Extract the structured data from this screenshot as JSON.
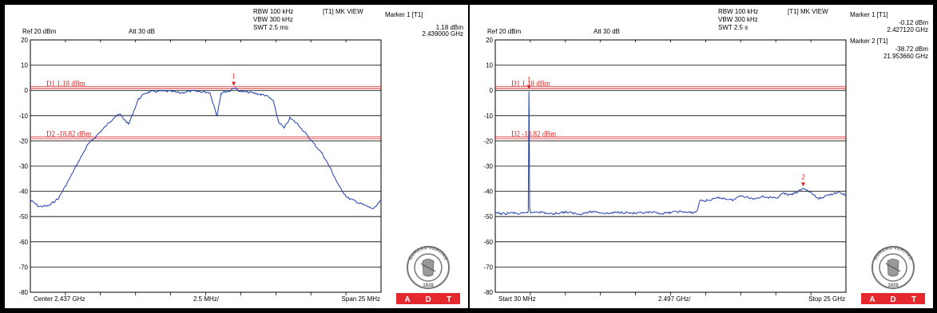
{
  "panels": [
    {
      "header": {
        "rbw": "RBW 100 kHz",
        "vbw": "VBW 300 kHz",
        "swt": "SWT 2.5 ms",
        "view": "[T1] MK VIEW",
        "ref": "Ref 20 dBm",
        "att": "Att  30 dB"
      },
      "markers": [
        {
          "label": "Marker 1 [T1]",
          "level": "1.18 dBm",
          "freq": "2.439000 GHz"
        }
      ],
      "footer": {
        "left": "Center 2.437 GHz",
        "center": "2.5 MHz/",
        "right": "Span 25 MHz"
      }
    },
    {
      "header": {
        "rbw": "RBW 100 kHz",
        "vbw": "VBW 300 kHz",
        "swt": "SWT 2.5 s",
        "view": "[T1] MK VIEW",
        "ref": "Ref 20 dBm",
        "att": "Att  30 dB"
      },
      "markers": [
        {
          "label": "Marker 1 [T1]",
          "level": "-0.12 dBm",
          "freq": "2.427120 GHz"
        },
        {
          "label": "Marker 2 [T1]",
          "level": "-38.72 dBm",
          "freq": "21.953660 GHz"
        }
      ],
      "footer": {
        "left": "Start 30 MHz",
        "center": "2.497 GHz/",
        "right": "Stop 25 GHz"
      }
    }
  ],
  "logo": {
    "text": "BUREAU VERITAS",
    "year": "1828",
    "band": [
      "A",
      "D",
      "T"
    ],
    "band_color": "#e4282d"
  },
  "chart_data": [
    {
      "type": "line",
      "xlabel": "",
      "ylabel": "",
      "xlim": [
        2424.5,
        2449.5
      ],
      "ylim": [
        -80,
        20
      ],
      "yticks": [
        "20",
        "10",
        "0",
        "-10",
        "-20",
        "-30",
        "-40",
        "-50",
        "-60",
        "-70",
        "-80"
      ],
      "grid": true,
      "series": [
        {
          "x": [
            2424.5,
            2425.1,
            2425.8,
            2426.5,
            2427.2,
            2427.9,
            2428.6,
            2429.3,
            2430.0,
            2430.5,
            2430.9,
            2431.5,
            2432.2,
            2432.7,
            2433.2,
            2433.8,
            2434.5,
            2435.2,
            2435.9,
            2436.6,
            2437.3,
            2437.8,
            2438.1,
            2438.4,
            2438.7,
            2439.0,
            2439.5,
            2440.2,
            2440.8,
            2441.3,
            2441.8,
            2442.2,
            2442.6,
            2443.0,
            2443.6,
            2444.1,
            2444.7,
            2445.3,
            2445.9,
            2446.5,
            2447.1,
            2447.7,
            2448.3,
            2449.0,
            2449.5
          ],
          "y": [
            -43.5,
            -46.0,
            -45.8,
            -42.8,
            -36.0,
            -28.5,
            -21.5,
            -17.5,
            -13.5,
            -10.5,
            -9.5,
            -13.5,
            -3.5,
            -1.0,
            -0.5,
            -0.3,
            -0.4,
            -1.0,
            -0.3,
            -0.5,
            -0.8,
            -10.0,
            -1.0,
            -0.5,
            -0.3,
            1.18,
            -0.5,
            -0.8,
            -1.5,
            -2.0,
            -4.0,
            -12.5,
            -15.0,
            -11.0,
            -13.5,
            -17.0,
            -21.0,
            -25.0,
            -31.0,
            -38.0,
            -42.5,
            -44.0,
            -45.5,
            -47.0,
            -43.5
          ]
        }
      ],
      "lines": [
        {
          "name": "D1",
          "label": "D1 1.18 dBm",
          "value": 1.18
        },
        {
          "name": "D2",
          "label": "D2 -18.82 dBm",
          "value": -18.82
        }
      ],
      "markers": [
        {
          "id": "1",
          "x": 2439.0,
          "y": 1.18
        }
      ]
    },
    {
      "type": "line",
      "xlabel": "",
      "ylabel": "",
      "xlim": [
        30,
        25000
      ],
      "ylim": [
        -80,
        20
      ],
      "yticks": [
        "20",
        "10",
        "0",
        "-10",
        "-20",
        "-30",
        "-40",
        "-50",
        "-60",
        "-70",
        "-80"
      ],
      "grid": true,
      "series": [
        {
          "x": [
            30,
            600,
            1200,
            1800,
            2250,
            2380,
            2420,
            2427,
            2440,
            2480,
            2550,
            3000,
            4000,
            5000,
            6000,
            7000,
            8000,
            9000,
            10000,
            11000,
            12000,
            13000,
            14000,
            14400,
            14600,
            15000,
            16000,
            17000,
            17500,
            18000,
            18500,
            19000,
            20000,
            20500,
            21000,
            21500,
            21954,
            22500,
            23000,
            23500,
            24000,
            24500,
            25000
          ],
          "y": [
            -48.5,
            -49.0,
            -48.5,
            -49.0,
            -48.6,
            -48.0,
            -12.0,
            -0.12,
            -8.0,
            -47.0,
            -48.5,
            -48.0,
            -49.0,
            -48.2,
            -49.0,
            -48.0,
            -48.8,
            -48.2,
            -48.8,
            -48.4,
            -48.8,
            -48.0,
            -48.5,
            -48.0,
            -43.5,
            -43.8,
            -42.5,
            -43.5,
            -41.5,
            -42.5,
            -43.0,
            -42.0,
            -42.8,
            -40.8,
            -41.5,
            -40.5,
            -38.72,
            -40.5,
            -43.0,
            -42.0,
            -41.0,
            -40.5,
            -41.5
          ]
        }
      ],
      "lines": [
        {
          "name": "D1",
          "label": "D1 1.18 dBm",
          "value": 1.18
        },
        {
          "name": "D2",
          "label": "D2 -18.82 dBm",
          "value": -18.82
        }
      ],
      "markers": [
        {
          "id": "1",
          "x": 2427,
          "y": -0.12
        },
        {
          "id": "2",
          "x": 21954,
          "y": -38.72
        }
      ]
    }
  ]
}
